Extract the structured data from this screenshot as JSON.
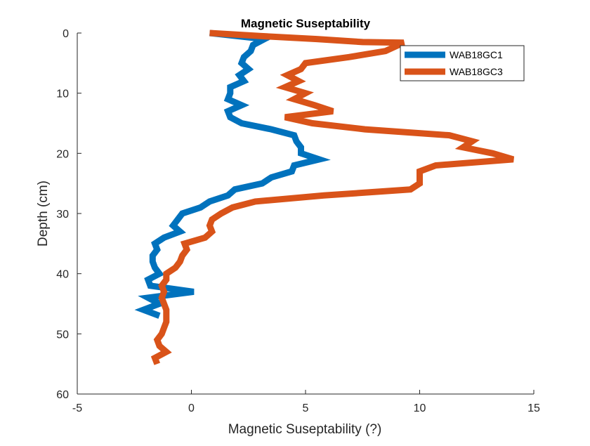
{
  "chart_data": {
    "type": "line",
    "title": "Magnetic Suseptability",
    "xlabel": "Magnetic Suseptability (?)",
    "ylabel": "Depth (cm)",
    "xlim": [
      -5,
      15
    ],
    "ylim": [
      0,
      60
    ],
    "y_reversed": true,
    "x_ticks": [
      -5,
      0,
      5,
      10,
      15
    ],
    "y_ticks": [
      0,
      10,
      20,
      30,
      40,
      50,
      60
    ],
    "grid": false,
    "legend_position": "top-right",
    "series": [
      {
        "name": "WAB18GC1",
        "color": "#0072BD",
        "points": [
          [
            0.8,
            0
          ],
          [
            3.2,
            1
          ],
          [
            2.7,
            2
          ],
          [
            2.6,
            3
          ],
          [
            2.3,
            4
          ],
          [
            2.2,
            5
          ],
          [
            2.5,
            6
          ],
          [
            2.1,
            7
          ],
          [
            2.3,
            8
          ],
          [
            1.7,
            9
          ],
          [
            1.7,
            10
          ],
          [
            1.6,
            11
          ],
          [
            2.2,
            12
          ],
          [
            1.6,
            13
          ],
          [
            1.7,
            14
          ],
          [
            2.2,
            15
          ],
          [
            3.5,
            16
          ],
          [
            4.5,
            17
          ],
          [
            4.6,
            18
          ],
          [
            4.8,
            19
          ],
          [
            4.8,
            20
          ],
          [
            5.6,
            21
          ],
          [
            4.5,
            22
          ],
          [
            4.4,
            23
          ],
          [
            3.5,
            24
          ],
          [
            3.1,
            25
          ],
          [
            1.9,
            26
          ],
          [
            1.6,
            27
          ],
          [
            0.8,
            28
          ],
          [
            0.4,
            29
          ],
          [
            -0.4,
            30
          ],
          [
            -0.6,
            31
          ],
          [
            -0.8,
            32
          ],
          [
            -0.5,
            33
          ],
          [
            -1.2,
            34
          ],
          [
            -1.6,
            35
          ],
          [
            -1.5,
            36
          ],
          [
            -1.7,
            37
          ],
          [
            -1.7,
            38
          ],
          [
            -1.6,
            39
          ],
          [
            -1.4,
            40
          ],
          [
            -1.9,
            41
          ],
          [
            -1.8,
            42
          ],
          [
            0.1,
            43
          ],
          [
            -1.9,
            44
          ],
          [
            -1.4,
            45
          ],
          [
            -2.1,
            46
          ],
          [
            -1.4,
            47
          ]
        ]
      },
      {
        "name": "WAB18GC3",
        "color": "#D95319",
        "points": [
          [
            0.8,
            0
          ],
          [
            3.0,
            0.5
          ],
          [
            5.5,
            1
          ],
          [
            7.5,
            1.5
          ],
          [
            9.3,
            1.6
          ],
          [
            8.5,
            3
          ],
          [
            6.9,
            4
          ],
          [
            5.0,
            5
          ],
          [
            4.8,
            6
          ],
          [
            4.2,
            7
          ],
          [
            4.7,
            8
          ],
          [
            4.1,
            9
          ],
          [
            5.0,
            10
          ],
          [
            4.5,
            11
          ],
          [
            5.4,
            12
          ],
          [
            6.2,
            13
          ],
          [
            4.1,
            14
          ],
          [
            5.3,
            15
          ],
          [
            7.6,
            16
          ],
          [
            11.3,
            17
          ],
          [
            12.3,
            18
          ],
          [
            11.9,
            19
          ],
          [
            13.2,
            20
          ],
          [
            14.1,
            21
          ],
          [
            10.7,
            22
          ],
          [
            10.0,
            23
          ],
          [
            10.0,
            24
          ],
          [
            10.0,
            25
          ],
          [
            9.6,
            26
          ],
          [
            5.8,
            27
          ],
          [
            2.8,
            28
          ],
          [
            1.8,
            29
          ],
          [
            1.3,
            30
          ],
          [
            0.9,
            31
          ],
          [
            0.8,
            32
          ],
          [
            0.9,
            33
          ],
          [
            0.6,
            34
          ],
          [
            -0.3,
            35
          ],
          [
            -0.2,
            36
          ],
          [
            -0.4,
            37
          ],
          [
            -0.5,
            38
          ],
          [
            -0.7,
            39
          ],
          [
            -1.1,
            40
          ],
          [
            -1.1,
            41
          ],
          [
            -1.3,
            42
          ],
          [
            -1.2,
            43
          ],
          [
            -1.3,
            44
          ],
          [
            -1.2,
            45
          ],
          [
            -1.1,
            46
          ],
          [
            -1.1,
            47
          ],
          [
            -1.1,
            48
          ],
          [
            -1.2,
            49
          ],
          [
            -1.3,
            50
          ],
          [
            -1.5,
            51
          ],
          [
            -1.4,
            52
          ],
          [
            -1.1,
            53
          ],
          [
            -1.6,
            54
          ],
          [
            -1.5,
            55
          ]
        ]
      }
    ]
  }
}
